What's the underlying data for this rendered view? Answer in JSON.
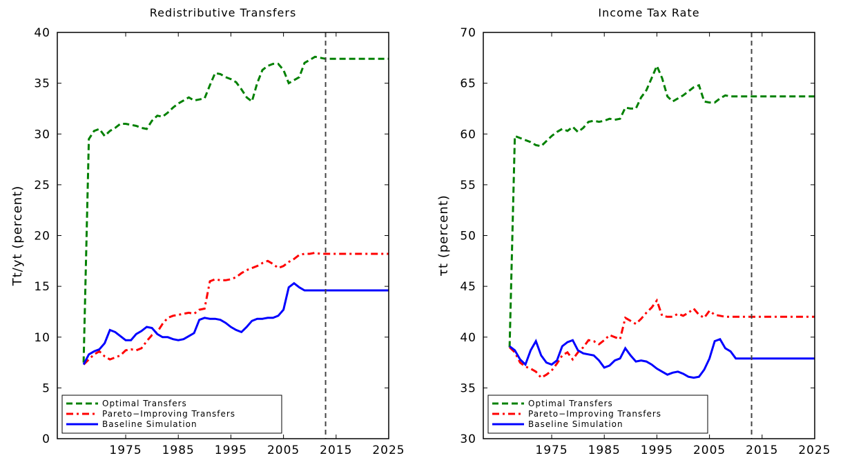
{
  "chart_data": [
    {
      "type": "line",
      "title": "Redistributive Transfers",
      "ylabel": "Tt/yt (percent)",
      "x": [
        1967,
        1968,
        1969,
        1970,
        1971,
        1972,
        1973,
        1974,
        1975,
        1976,
        1977,
        1978,
        1979,
        1980,
        1981,
        1982,
        1983,
        1984,
        1985,
        1986,
        1987,
        1988,
        1989,
        1990,
        1991,
        1992,
        1993,
        1994,
        1995,
        1996,
        1997,
        1998,
        1999,
        2000,
        2001,
        2002,
        2003,
        2004,
        2005,
        2006,
        2007,
        2008,
        2009,
        2010,
        2011,
        2012,
        2013,
        2025
      ],
      "series": [
        {
          "name": "Optimal Transfers",
          "color": "#008000",
          "style": "dashed",
          "values": [
            7.5,
            29.5,
            30.3,
            30.5,
            29.8,
            30.3,
            30.6,
            31.0,
            31.0,
            30.9,
            30.8,
            30.6,
            30.5,
            31.3,
            31.8,
            31.7,
            32.1,
            32.6,
            33.0,
            33.3,
            33.6,
            33.3,
            33.4,
            33.5,
            34.8,
            36.0,
            35.9,
            35.6,
            35.4,
            35.1,
            34.4,
            33.6,
            33.2,
            35.0,
            36.3,
            36.7,
            36.9,
            36.9,
            36.3,
            35.0,
            35.3,
            35.6,
            37.0,
            37.3,
            37.6,
            37.5,
            37.4,
            37.4
          ]
        },
        {
          "name": "Pareto−Improving Transfers",
          "color": "#ff0000",
          "style": "dashdot",
          "values": [
            7.3,
            7.8,
            8.3,
            8.6,
            8.1,
            7.8,
            8.0,
            8.2,
            8.7,
            8.8,
            8.7,
            8.9,
            9.6,
            10.2,
            10.5,
            11.3,
            11.9,
            12.1,
            12.2,
            12.3,
            12.4,
            12.3,
            12.7,
            12.8,
            15.5,
            15.7,
            15.6,
            15.6,
            15.7,
            15.9,
            16.3,
            16.6,
            16.8,
            17.0,
            17.3,
            17.5,
            17.2,
            16.8,
            17.0,
            17.4,
            17.7,
            18.1,
            18.2,
            18.2,
            18.3,
            18.2,
            18.2,
            18.2
          ]
        },
        {
          "name": "Baseline Simulation",
          "color": "#0000ff",
          "style": "solid",
          "values": [
            7.3,
            8.3,
            8.6,
            8.8,
            9.4,
            10.7,
            10.5,
            10.1,
            9.7,
            9.7,
            10.3,
            10.6,
            11.0,
            10.9,
            10.3,
            10.0,
            10.0,
            9.8,
            9.7,
            9.8,
            10.1,
            10.4,
            11.7,
            11.9,
            11.8,
            11.8,
            11.7,
            11.4,
            11.0,
            10.7,
            10.5,
            11.0,
            11.6,
            11.8,
            11.8,
            11.9,
            11.9,
            12.1,
            12.7,
            14.9,
            15.3,
            14.9,
            14.6,
            14.6,
            14.6,
            14.6,
            14.6,
            14.6
          ]
        }
      ],
      "xlim": [
        1962,
        2025
      ],
      "xticks": [
        1975,
        1985,
        1995,
        2005,
        2015,
        2025
      ],
      "ylim": [
        0,
        40
      ],
      "yticks": [
        0,
        5,
        10,
        15,
        20,
        25,
        30,
        35,
        40
      ],
      "vline": 2013,
      "legend": "lower left"
    },
    {
      "type": "line",
      "title": "Income Tax Rate",
      "ylabel": "τt (percent)",
      "x": [
        1967,
        1968,
        1969,
        1970,
        1971,
        1972,
        1973,
        1974,
        1975,
        1976,
        1977,
        1978,
        1979,
        1980,
        1981,
        1982,
        1983,
        1984,
        1985,
        1986,
        1987,
        1988,
        1989,
        1990,
        1991,
        1992,
        1993,
        1994,
        1995,
        1996,
        1997,
        1998,
        1999,
        2000,
        2001,
        2002,
        2003,
        2004,
        2005,
        2006,
        2007,
        2008,
        2009,
        2010,
        2011,
        2012,
        2013,
        2025
      ],
      "series": [
        {
          "name": "Optimal Transfers",
          "color": "#008000",
          "style": "dashed",
          "values": [
            39.0,
            59.8,
            59.6,
            59.4,
            59.2,
            58.9,
            58.8,
            59.3,
            59.8,
            60.2,
            60.5,
            60.3,
            60.7,
            60.2,
            60.6,
            61.2,
            61.3,
            61.2,
            61.3,
            61.5,
            61.4,
            61.5,
            62.6,
            62.5,
            62.5,
            63.6,
            64.3,
            65.5,
            66.7,
            65.5,
            63.7,
            63.2,
            63.5,
            63.8,
            64.2,
            64.6,
            64.8,
            63.2,
            63.1,
            63.1,
            63.5,
            63.8,
            63.7,
            63.7,
            63.7,
            63.7,
            63.7,
            63.7
          ]
        },
        {
          "name": "Pareto−Improving Transfers",
          "color": "#ff0000",
          "style": "dashdot",
          "values": [
            39.0,
            38.5,
            37.5,
            37.1,
            36.9,
            36.6,
            36.0,
            36.3,
            36.7,
            37.4,
            38.2,
            38.5,
            37.8,
            38.5,
            39.0,
            39.7,
            39.6,
            39.3,
            39.7,
            40.2,
            40.0,
            39.8,
            41.9,
            41.6,
            41.3,
            41.8,
            42.4,
            42.9,
            43.6,
            42.1,
            42.0,
            42.0,
            42.3,
            42.1,
            42.4,
            42.8,
            42.2,
            41.9,
            42.6,
            42.2,
            42.1,
            42.0,
            42.0,
            42.0,
            42.0,
            42.0,
            42.0,
            42.0
          ]
        },
        {
          "name": "Baseline Simulation",
          "color": "#0000ff",
          "style": "solid",
          "values": [
            39.1,
            38.7,
            37.8,
            37.3,
            38.7,
            39.6,
            38.2,
            37.5,
            37.3,
            37.7,
            39.1,
            39.5,
            39.7,
            38.7,
            38.4,
            38.3,
            38.2,
            37.7,
            37.0,
            37.2,
            37.7,
            37.9,
            38.9,
            38.2,
            37.6,
            37.7,
            37.6,
            37.3,
            36.9,
            36.6,
            36.3,
            36.5,
            36.6,
            36.4,
            36.1,
            36.0,
            36.1,
            36.8,
            37.9,
            39.6,
            39.8,
            38.9,
            38.6,
            37.9,
            37.9,
            37.9,
            37.9,
            37.9
          ]
        }
      ],
      "xlim": [
        1962,
        2025
      ],
      "xticks": [
        1975,
        1985,
        1995,
        2005,
        2015,
        2025
      ],
      "ylim": [
        30,
        70
      ],
      "yticks": [
        30,
        35,
        40,
        45,
        50,
        55,
        60,
        65,
        70
      ],
      "vline": 2013,
      "legend": "lower left"
    }
  ]
}
